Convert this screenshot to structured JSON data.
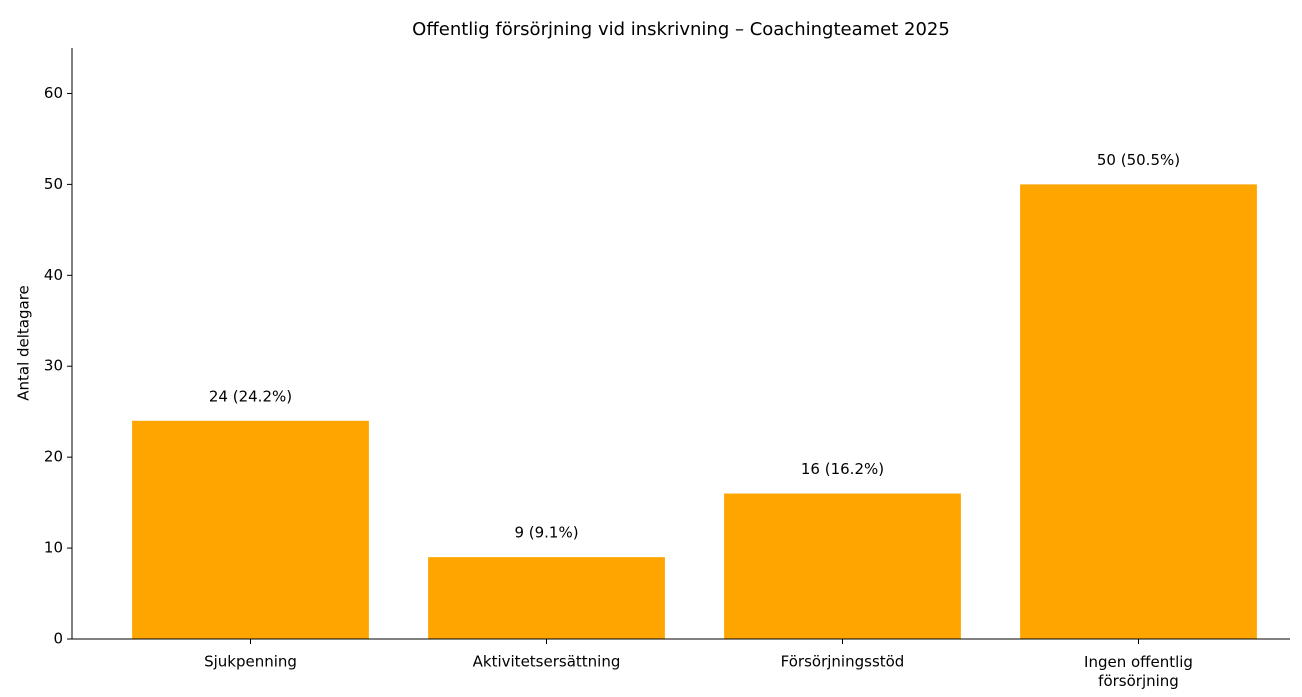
{
  "chart_data": {
    "type": "bar",
    "title": "Offentlig försörjning vid inskrivning – Coachingteamet 2025",
    "ylabel": "Antal deltagare",
    "categories": [
      "Sjukpenning",
      "Aktivitetsersättning",
      "Försörjningsstöd",
      "Ingen offentlig\nförsörjning"
    ],
    "values": [
      24,
      9,
      16,
      50
    ],
    "value_labels": [
      "24 (24.2%)",
      "9 (9.1%)",
      "16 (16.2%)",
      "50 (50.5%)"
    ],
    "color": "#ffa500",
    "ylim": [
      0,
      65
    ],
    "yticks": [
      0,
      10,
      20,
      30,
      40,
      50,
      60
    ],
    "grid": false
  }
}
